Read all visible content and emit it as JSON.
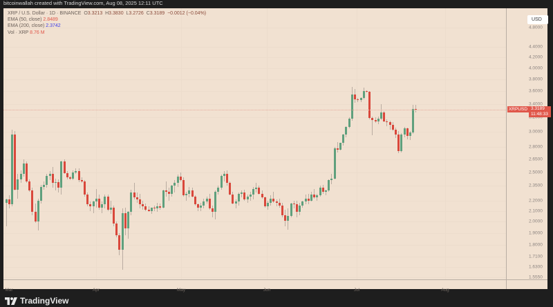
{
  "topbar": {
    "caption": "bitcoinwallah created with TradingView.com, Aug 08, 2025 12:11 UTC"
  },
  "legend": {
    "symbol_line": "XRP / U.S. Dollar · 1D · BINANCE",
    "open_label": "O",
    "open": "3.3213",
    "high_label": "H",
    "high": "3.3830",
    "low_label": "L",
    "low": "3.2726",
    "close_label": "C",
    "close": "3.3189",
    "change": "−0.0012 (−0.04%)",
    "ema50_label": "EMA (50, close)",
    "ema50_value": "2.8489",
    "ema200_label": "EMA (200, close)",
    "ema200_value": "2.3742",
    "vol_label": "Vol · XRP",
    "vol_value": "8.76 M"
  },
  "price_axis": {
    "currency_button": "USD",
    "ticks": [
      "4.8000",
      "4.4000",
      "4.2000",
      "4.0000",
      "3.8000",
      "3.6000",
      "3.4000",
      "3.2000",
      "3.0000",
      "2.8000",
      "2.6500",
      "2.5000",
      "2.3500",
      "2.2000",
      "2.1000",
      "2.0000",
      "1.9000",
      "1.8000",
      "1.7100",
      "1.6300",
      "1.5550"
    ]
  },
  "time_axis": {
    "ticks": [
      "Mar",
      "Apr",
      "May",
      "Jun",
      "Jul",
      "Aug"
    ]
  },
  "last_price": {
    "symbol": "XRPUSD",
    "price": "3.3189",
    "countdown": "11:48:33"
  },
  "branding": {
    "logo_text": "TradingView"
  },
  "colors": {
    "up": "#5fa07d",
    "down": "#d9473b",
    "background": "#f1e1d1",
    "frame": "#1e1e1e",
    "price_tag": "#e0574a"
  },
  "chart_data": {
    "type": "candlestick",
    "title": "XRP / U.S. Dollar · 1D · BINANCE",
    "xlabel": "",
    "ylabel": "USD",
    "y_scale": "log",
    "ylim": [
      1.555,
      4.8
    ],
    "x_ticks": [
      "Mar",
      "Apr",
      "May",
      "Jun",
      "Jul",
      "Aug"
    ],
    "grid": true,
    "legend": [
      "EMA (50, close) 2.8489",
      "EMA (200, close) 2.3742",
      "Vol · XRP 8.76 M"
    ],
    "last": {
      "open": 3.3213,
      "high": 3.383,
      "low": 3.2726,
      "close": 3.3189,
      "change": -0.0012,
      "change_pct": -0.04
    },
    "candles": [
      [
        2.18,
        2.22,
        1.96,
        2.21
      ],
      [
        2.21,
        2.25,
        2.12,
        2.16
      ],
      [
        2.16,
        3.03,
        2.14,
        2.96
      ],
      [
        2.96,
        3.01,
        2.3,
        2.31
      ],
      [
        2.31,
        2.48,
        2.22,
        2.42
      ],
      [
        2.42,
        2.52,
        2.38,
        2.48
      ],
      [
        2.48,
        2.65,
        2.45,
        2.6
      ],
      [
        2.6,
        2.62,
        2.38,
        2.4
      ],
      [
        2.4,
        2.42,
        2.29,
        2.3
      ],
      [
        2.3,
        2.33,
        2.06,
        2.09
      ],
      [
        2.09,
        2.17,
        1.99,
        2.0
      ],
      [
        2.0,
        2.22,
        1.92,
        2.2
      ],
      [
        2.2,
        2.36,
        2.17,
        2.34
      ],
      [
        2.34,
        2.4,
        2.31,
        2.36
      ],
      [
        2.36,
        2.48,
        2.33,
        2.46
      ],
      [
        2.46,
        2.51,
        2.41,
        2.48
      ],
      [
        2.48,
        2.56,
        2.33,
        2.38
      ],
      [
        2.38,
        2.43,
        2.3,
        2.39
      ],
      [
        2.39,
        2.42,
        2.28,
        2.33
      ],
      [
        2.33,
        2.63,
        2.26,
        2.62
      ],
      [
        2.62,
        2.65,
        2.48,
        2.49
      ],
      [
        2.49,
        2.51,
        2.42,
        2.44
      ],
      [
        2.44,
        2.46,
        2.41,
        2.43
      ],
      [
        2.43,
        2.52,
        2.41,
        2.5
      ],
      [
        2.5,
        2.54,
        2.48,
        2.51
      ],
      [
        2.51,
        2.54,
        2.39,
        2.41
      ],
      [
        2.41,
        2.44,
        2.38,
        2.4
      ],
      [
        2.4,
        2.41,
        2.24,
        2.26
      ],
      [
        2.26,
        2.28,
        2.14,
        2.16
      ],
      [
        2.16,
        2.19,
        2.1,
        2.14
      ],
      [
        2.14,
        2.2,
        2.08,
        2.19
      ],
      [
        2.19,
        2.32,
        2.13,
        2.22
      ],
      [
        2.22,
        2.26,
        2.11,
        2.13
      ],
      [
        2.13,
        2.19,
        2.08,
        2.16
      ],
      [
        2.16,
        2.26,
        2.12,
        2.24
      ],
      [
        2.24,
        2.26,
        2.1,
        2.11
      ],
      [
        2.11,
        2.2,
        2.07,
        2.13
      ],
      [
        2.13,
        2.15,
        1.96,
        1.98
      ],
      [
        1.98,
        2.0,
        1.86,
        1.88
      ],
      [
        1.88,
        1.9,
        1.72,
        1.76
      ],
      [
        1.76,
        2.12,
        1.61,
        2.08
      ],
      [
        2.08,
        2.13,
        1.88,
        1.94
      ],
      [
        1.94,
        2.1,
        1.85,
        2.09
      ],
      [
        2.09,
        2.31,
        2.06,
        2.28
      ],
      [
        2.28,
        2.38,
        2.21,
        2.23
      ],
      [
        2.23,
        2.28,
        2.18,
        2.21
      ],
      [
        2.21,
        2.27,
        2.12,
        2.16
      ],
      [
        2.16,
        2.2,
        2.11,
        2.14
      ],
      [
        2.14,
        2.17,
        2.1,
        2.11
      ],
      [
        2.11,
        2.14,
        2.09,
        2.1
      ],
      [
        2.1,
        2.13,
        2.07,
        2.13
      ],
      [
        2.13,
        2.15,
        2.1,
        2.12
      ],
      [
        2.12,
        2.18,
        2.09,
        2.14
      ],
      [
        2.14,
        2.17,
        2.11,
        2.13
      ],
      [
        2.13,
        2.31,
        2.12,
        2.3
      ],
      [
        2.3,
        2.4,
        2.24,
        2.29
      ],
      [
        2.29,
        2.33,
        2.2,
        2.27
      ],
      [
        2.27,
        2.36,
        2.24,
        2.35
      ],
      [
        2.35,
        2.41,
        2.28,
        2.38
      ],
      [
        2.38,
        2.47,
        2.34,
        2.45
      ],
      [
        2.45,
        2.5,
        2.4,
        2.41
      ],
      [
        2.41,
        2.44,
        2.24,
        2.25
      ],
      [
        2.25,
        2.29,
        2.2,
        2.27
      ],
      [
        2.27,
        2.34,
        2.23,
        2.3
      ],
      [
        2.3,
        2.33,
        2.23,
        2.24
      ],
      [
        2.24,
        2.25,
        2.15,
        2.16
      ],
      [
        2.16,
        2.17,
        2.1,
        2.13
      ],
      [
        2.13,
        2.18,
        2.1,
        2.15
      ],
      [
        2.15,
        2.22,
        2.12,
        2.19
      ],
      [
        2.19,
        2.24,
        2.17,
        2.22
      ],
      [
        2.22,
        2.27,
        2.11,
        2.12
      ],
      [
        2.12,
        2.15,
        2.04,
        2.09
      ],
      [
        2.09,
        2.3,
        2.02,
        2.29
      ],
      [
        2.29,
        2.35,
        2.26,
        2.33
      ],
      [
        2.33,
        2.47,
        2.31,
        2.46
      ],
      [
        2.46,
        2.51,
        2.4,
        2.48
      ],
      [
        2.48,
        2.52,
        2.35,
        2.38
      ],
      [
        2.38,
        2.4,
        2.25,
        2.26
      ],
      [
        2.26,
        2.29,
        2.16,
        2.17
      ],
      [
        2.17,
        2.21,
        2.12,
        2.19
      ],
      [
        2.19,
        2.28,
        2.15,
        2.27
      ],
      [
        2.27,
        2.3,
        2.23,
        2.28
      ],
      [
        2.28,
        2.31,
        2.2,
        2.21
      ],
      [
        2.21,
        2.26,
        2.18,
        2.24
      ],
      [
        2.24,
        2.29,
        2.2,
        2.26
      ],
      [
        2.26,
        2.34,
        2.21,
        2.32
      ],
      [
        2.32,
        2.38,
        2.28,
        2.33
      ],
      [
        2.33,
        2.35,
        2.26,
        2.27
      ],
      [
        2.27,
        2.3,
        2.22,
        2.23
      ],
      [
        2.23,
        2.24,
        2.13,
        2.14
      ],
      [
        2.14,
        2.2,
        2.11,
        2.18
      ],
      [
        2.18,
        2.25,
        2.15,
        2.22
      ],
      [
        2.22,
        2.29,
        2.18,
        2.19
      ],
      [
        2.19,
        2.21,
        2.14,
        2.18
      ],
      [
        2.18,
        2.22,
        2.13,
        2.15
      ],
      [
        2.15,
        2.18,
        2.04,
        2.06
      ],
      [
        2.06,
        2.11,
        1.96,
        2.01
      ],
      [
        2.01,
        2.12,
        1.93,
        2.05
      ],
      [
        2.05,
        2.18,
        2.04,
        2.17
      ],
      [
        2.17,
        2.2,
        2.12,
        2.16
      ],
      [
        2.16,
        2.2,
        2.04,
        2.09
      ],
      [
        2.09,
        2.18,
        2.06,
        2.15
      ],
      [
        2.15,
        2.2,
        2.13,
        2.19
      ],
      [
        2.19,
        2.26,
        2.16,
        2.22
      ],
      [
        2.22,
        2.27,
        2.16,
        2.2
      ],
      [
        2.2,
        2.29,
        2.19,
        2.26
      ],
      [
        2.26,
        2.32,
        2.22,
        2.23
      ],
      [
        2.23,
        2.27,
        2.2,
        2.25
      ],
      [
        2.25,
        2.35,
        2.24,
        2.33
      ],
      [
        2.33,
        2.36,
        2.27,
        2.29
      ],
      [
        2.29,
        2.31,
        2.25,
        2.3
      ],
      [
        2.3,
        2.42,
        2.29,
        2.41
      ],
      [
        2.41,
        2.48,
        2.37,
        2.43
      ],
      [
        2.43,
        2.8,
        2.42,
        2.78
      ],
      [
        2.78,
        2.86,
        2.73,
        2.77
      ],
      [
        2.77,
        2.84,
        2.76,
        2.85
      ],
      [
        2.85,
        2.97,
        2.82,
        2.96
      ],
      [
        2.96,
        3.08,
        2.93,
        3.07
      ],
      [
        3.07,
        3.2,
        3.05,
        3.18
      ],
      [
        3.18,
        3.67,
        3.15,
        3.55
      ],
      [
        3.55,
        3.64,
        3.42,
        3.47
      ],
      [
        3.47,
        3.49,
        3.43,
        3.46
      ],
      [
        3.46,
        3.51,
        3.43,
        3.49
      ],
      [
        3.49,
        3.66,
        3.47,
        3.6
      ],
      [
        3.6,
        3.62,
        3.58,
        3.59
      ],
      [
        3.59,
        3.61,
        3.17,
        3.19
      ],
      [
        3.19,
        3.21,
        2.95,
        3.16
      ],
      [
        3.16,
        3.2,
        3.12,
        3.14
      ],
      [
        3.14,
        3.21,
        3.1,
        3.18
      ],
      [
        3.18,
        3.4,
        3.16,
        3.27
      ],
      [
        3.27,
        3.29,
        3.13,
        3.14
      ],
      [
        3.14,
        3.17,
        3.08,
        3.13
      ],
      [
        3.13,
        3.15,
        3.03,
        3.09
      ],
      [
        3.09,
        3.13,
        3.01,
        3.03
      ],
      [
        3.03,
        3.06,
        2.92,
        2.96
      ],
      [
        2.96,
        3.01,
        2.72,
        2.75
      ],
      [
        2.75,
        2.98,
        2.73,
        2.96
      ],
      [
        2.96,
        3.07,
        2.93,
        3.05
      ],
      [
        3.05,
        3.06,
        2.9,
        2.94
      ],
      [
        2.94,
        3.01,
        2.89,
        2.99
      ],
      [
        2.99,
        3.39,
        2.97,
        3.32
      ],
      [
        3.3213,
        3.383,
        3.2726,
        3.3189
      ]
    ]
  }
}
